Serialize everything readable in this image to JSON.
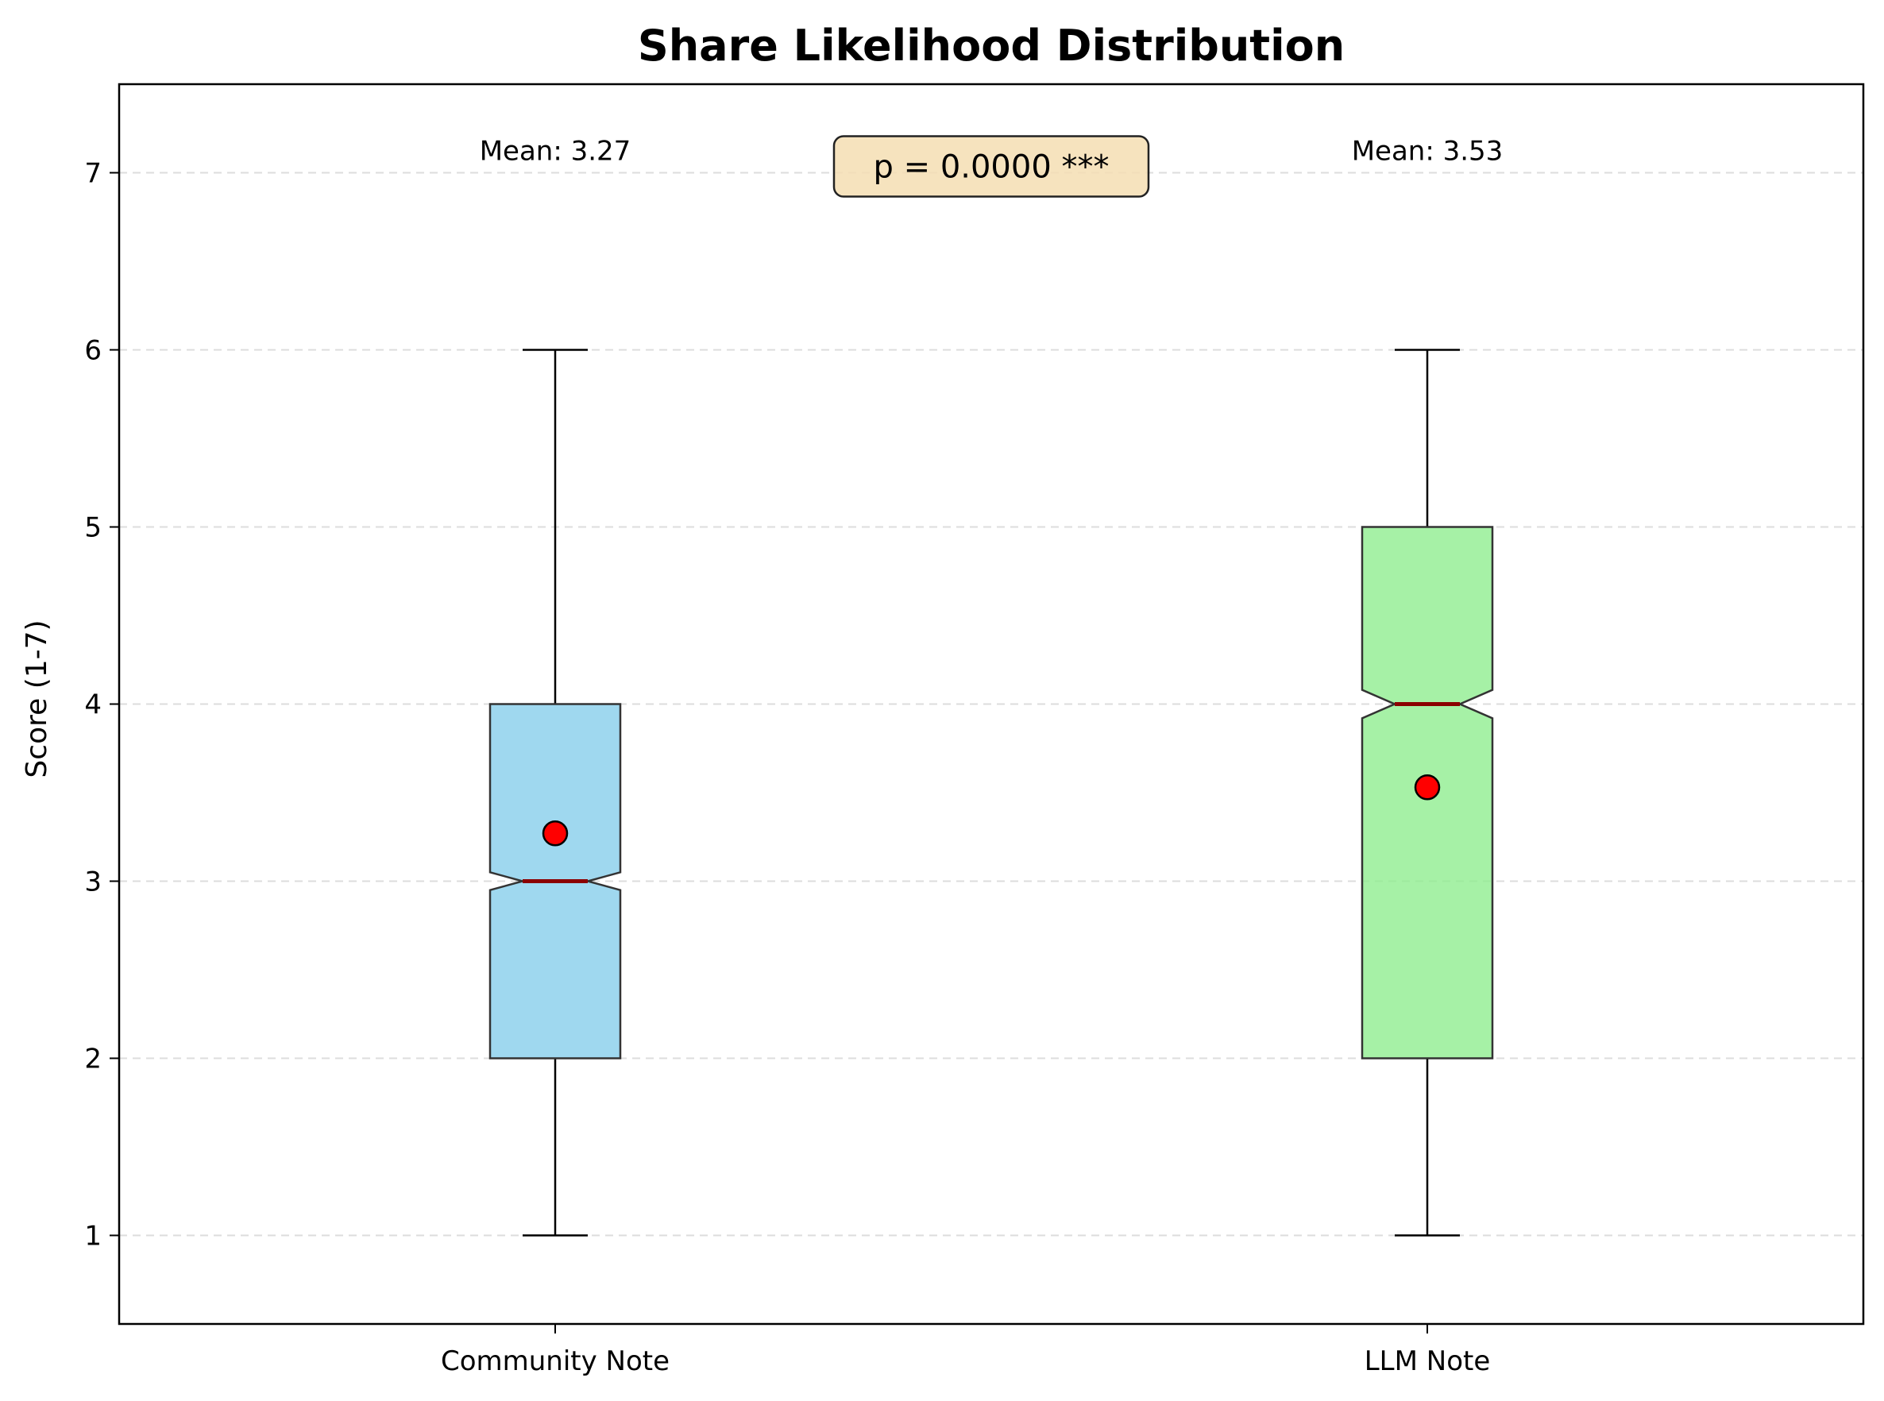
{
  "chart_data": {
    "type": "box",
    "title": "Share Likelihood Distribution",
    "xlabel": "",
    "ylabel": "Score (1-7)",
    "ylim": [
      0.5,
      7.5
    ],
    "yticks": [
      1,
      2,
      3,
      4,
      5,
      6,
      7
    ],
    "grid": "y-dashed",
    "notched": true,
    "categories": [
      "Community Note",
      "LLM Note"
    ],
    "boxes": [
      {
        "category": "Community Note",
        "whisker_low": 1,
        "q1": 2,
        "median": 3,
        "q3": 4,
        "whisker_high": 6,
        "notch_low": 2.95,
        "notch_high": 3.05,
        "mean": 3.27,
        "mean_label": "Mean: 3.27",
        "fill_color": "#87CEEB"
      },
      {
        "category": "LLM Note",
        "whisker_low": 1,
        "q1": 2,
        "median": 4,
        "q3": 5,
        "whisker_high": 6,
        "notch_low": 3.92,
        "notch_high": 4.08,
        "mean": 3.53,
        "mean_label": "Mean: 3.53",
        "fill_color": "#90EE90"
      }
    ],
    "annotation": "p = 0.0000 ***",
    "colors": {
      "median": "#8B0000",
      "mean_marker": "#FF0000",
      "box_edge": "#333333",
      "annotation_bg": "#F5DEB3",
      "grid": "#DDDDDD"
    }
  }
}
